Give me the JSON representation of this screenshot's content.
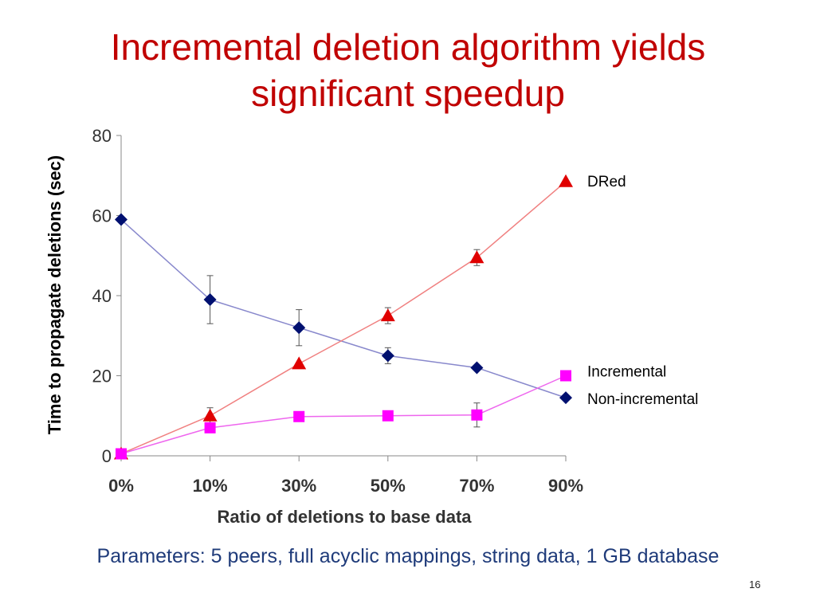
{
  "slide": {
    "title_line1": "Incremental deletion algorithm yields",
    "title_line2": "significant speedup",
    "footer": "Parameters: 5 peers, full acyclic mappings, string data, 1 GB database",
    "page_number": "16",
    "title_color": "#c00000",
    "footer_color": "#1f3b7a"
  },
  "chart_data": {
    "type": "line",
    "title": "",
    "xlabel": "Ratio of deletions to base data",
    "ylabel": "Time to propagate deletions (sec)",
    "categories": [
      "0%",
      "10%",
      "30%",
      "50%",
      "70%",
      "90%"
    ],
    "ylim": [
      0,
      80
    ],
    "yticks": [
      0,
      20,
      40,
      60,
      80
    ],
    "grid": false,
    "legend": "inline labels at right end of each series",
    "series": [
      {
        "name": "DRed",
        "marker": "triangle",
        "line_color": "#f08080",
        "marker_color": "#e00000",
        "values": [
          0.5,
          10,
          23,
          35,
          49.5,
          68.5
        ],
        "error": [
          0,
          2,
          0,
          2,
          2,
          0
        ]
      },
      {
        "name": "Incremental",
        "marker": "square",
        "line_color": "#ee66ee",
        "marker_color": "#ff00ff",
        "values": [
          0.5,
          7,
          9.8,
          10,
          10.2,
          20
        ],
        "error": [
          0,
          0,
          0,
          0,
          3,
          0
        ]
      },
      {
        "name": "Non-incremental",
        "marker": "diamond",
        "line_color": "#8888cc",
        "marker_color": "#001070",
        "values": [
          59,
          39,
          32,
          25,
          22,
          14.5
        ],
        "error": [
          0,
          6,
          4.5,
          2,
          0,
          0
        ]
      }
    ]
  }
}
